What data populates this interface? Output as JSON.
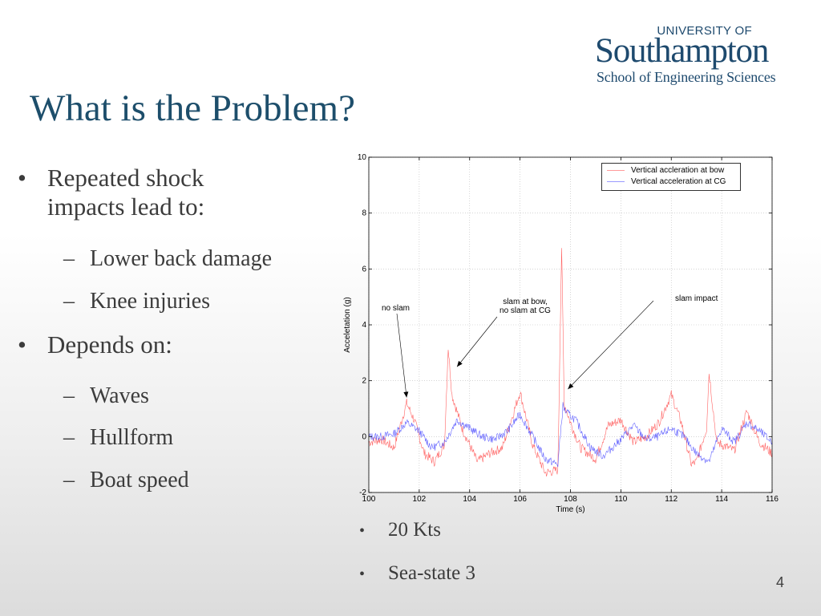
{
  "logo": {
    "line1": "UNIVERSITY OF",
    "line2": "Southampton",
    "line3": "School of Engineering Sciences"
  },
  "title": "What is the Problem?",
  "bullets": [
    {
      "text": "Repeated shock",
      "text2": "impacts lead to:",
      "subs": [
        "Lower back damage",
        "Knee injuries"
      ]
    },
    {
      "text": "Depends on:",
      "subs": [
        "Waves",
        "Hullform",
        "Boat speed"
      ]
    }
  ],
  "conditions": [
    "20 Kts",
    "Sea-state 3"
  ],
  "page_number": "4",
  "markers": {
    "bullet": "•",
    "dash": "–"
  },
  "colors": {
    "title": "#1d4e6b",
    "logo": "#1e4a6e",
    "bow": "#ff3030",
    "cg": "#3030ff"
  },
  "chart_data": {
    "type": "line",
    "xlabel": "Time (s)",
    "ylabel": "Acceletation (g)",
    "xlim": [
      100,
      116
    ],
    "ylim": [
      -2,
      10
    ],
    "xticks": [
      100,
      102,
      104,
      106,
      108,
      110,
      112,
      114,
      116
    ],
    "yticks": [
      -2,
      0,
      2,
      4,
      6,
      8,
      10
    ],
    "grid": true,
    "legend_position": "top-right",
    "series": [
      {
        "name": "Vertical accleration at bow",
        "color": "#ff3030",
        "x": [
          100,
          100.5,
          101,
          101.5,
          101.8,
          102.2,
          102.6,
          103,
          103.15,
          103.3,
          103.7,
          104.3,
          104.8,
          105.3,
          106,
          106.5,
          107,
          107.5,
          107.65,
          107.75,
          108,
          108.4,
          109,
          109.5,
          110,
          110.5,
          111,
          111.5,
          112,
          112.4,
          112.8,
          113,
          113.4,
          113.5,
          113.8,
          114.5,
          115,
          115.5,
          116
        ],
        "y": [
          -0.2,
          -0.1,
          -0.4,
          1.2,
          0.6,
          -0.6,
          -0.9,
          -0.3,
          3.2,
          1.5,
          0.3,
          -0.9,
          -0.6,
          -0.4,
          1.6,
          -0.3,
          -1.3,
          -1.2,
          6.8,
          1.2,
          0.5,
          -0.4,
          -0.8,
          0.4,
          0.6,
          -0.2,
          0,
          0.5,
          1.5,
          0.5,
          -1,
          -0.9,
          0.3,
          2.3,
          -0.2,
          -0.5,
          0.9,
          -0.2,
          -0.6
        ]
      },
      {
        "name": "Vertical acceleration at CG",
        "color": "#3030ff",
        "x": [
          100,
          100.5,
          101,
          101.5,
          102,
          102.5,
          103,
          103.5,
          104,
          104.5,
          105,
          105.5,
          106,
          106.5,
          107,
          107.5,
          107.7,
          107.8,
          108.2,
          108.8,
          109.3,
          110,
          110.5,
          111,
          111.5,
          112,
          112.5,
          113,
          113.5,
          114,
          114.5,
          115,
          115.5,
          116
        ],
        "y": [
          0,
          0,
          0.1,
          0.5,
          0.2,
          -0.4,
          -0.2,
          0.6,
          0.3,
          0,
          -0.1,
          0.2,
          0.8,
          0,
          -0.8,
          -1,
          1.1,
          0.9,
          0.6,
          -0.4,
          -0.7,
          -0.1,
          0.4,
          -0.1,
          0,
          0.3,
          0,
          -0.6,
          -0.9,
          0.3,
          -0.2,
          0.5,
          0.2,
          -0.2
        ]
      }
    ],
    "annotations": [
      {
        "text": "no slam",
        "target": [
          101.5,
          1.4
        ]
      },
      {
        "text": "slam at bow,",
        "text2": "no slam at CG",
        "target": [
          103.5,
          2.5
        ]
      },
      {
        "text": "slam impact",
        "target": [
          107.9,
          1.7
        ]
      }
    ]
  }
}
